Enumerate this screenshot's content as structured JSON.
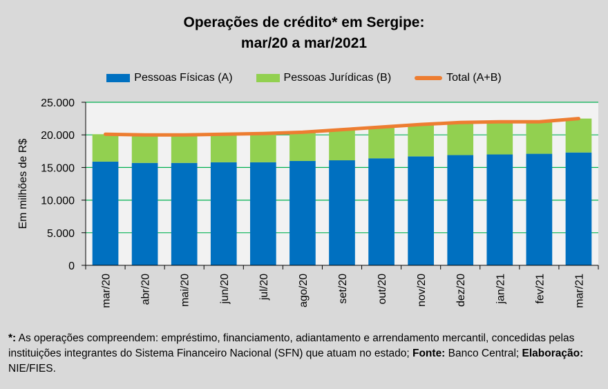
{
  "title_line1": "Operações de crédito* em Sergipe:",
  "title_line2": "mar/20 a mar/2021",
  "footnote": {
    "marker": "*:",
    "text": " As operações compreendem: empréstimo, financiamento, adiantamento e arrendamento mercantil, concedidas pelas instituições integrantes do Sistema Financeiro Nacional (SFN) que atuam no estado; ",
    "source_label": "Fonte:",
    "source_value": " Banco Central;",
    "author_label": "Elaboração:",
    "author_value": " NIE/FIES."
  },
  "chart_data": {
    "type": "bar",
    "stacked": true,
    "categories": [
      "mar/20",
      "abr/20",
      "mai/20",
      "jun/20",
      "jul/20",
      "ago/20",
      "set/20",
      "out/20",
      "nov/20",
      "dez/20",
      "jan/21",
      "fev/21",
      "mar/21"
    ],
    "series": [
      {
        "name": "Pessoas Físicas (A)",
        "type": "bar",
        "color": "#0070c0",
        "values": [
          15900,
          15700,
          15700,
          15800,
          15800,
          16000,
          16100,
          16400,
          16700,
          16900,
          17000,
          17100,
          17300
        ]
      },
      {
        "name": "Pessoas Jurídicas (B)",
        "type": "bar",
        "color": "#92d050",
        "values": [
          4200,
          4300,
          4300,
          4300,
          4400,
          4400,
          4700,
          4800,
          4900,
          5000,
          5000,
          4900,
          5200
        ]
      },
      {
        "name": "Total (A+B)",
        "type": "line",
        "color": "#ed7d31",
        "values": [
          20100,
          20000,
          20000,
          20100,
          20200,
          20400,
          20800,
          21200,
          21600,
          21900,
          22000,
          22000,
          22500
        ]
      }
    ],
    "ylabel": "Em milhões de R$",
    "ylim": [
      0,
      25000
    ],
    "yticks": [
      0,
      5000,
      10000,
      15000,
      20000,
      25000
    ],
    "ytick_labels": [
      "0",
      "5.000",
      "10.000",
      "15.000",
      "20.000",
      "25.000"
    ],
    "grid": true,
    "gridline_color": "#00b050",
    "legend_position": "top"
  }
}
